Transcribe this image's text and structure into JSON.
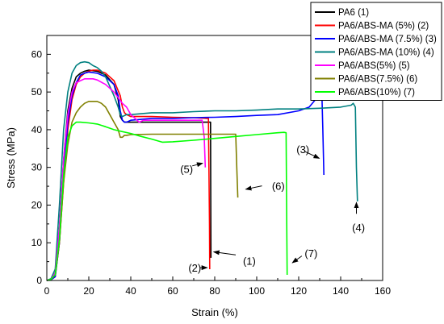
{
  "chart_data": {
    "type": "line",
    "xlabel": "Strain  (%)",
    "ylabel": "Stress  (MPa)",
    "xlim": [
      0,
      160
    ],
    "ylim": [
      0,
      65
    ],
    "xticks": [
      0,
      20,
      40,
      60,
      80,
      100,
      120,
      140,
      160
    ],
    "yticks": [
      0,
      10,
      20,
      30,
      40,
      50,
      60
    ],
    "grid": false,
    "legend_position": "top-right",
    "series": [
      {
        "name": "PA6 (1)",
        "color": "#000000",
        "x": [
          0,
          2,
          4,
          6,
          8,
          10,
          12,
          14,
          16,
          18,
          20,
          24,
          28,
          32,
          34,
          35,
          36,
          37,
          40,
          50,
          60,
          70,
          76,
          78,
          78.1,
          78.2
        ],
        "y": [
          0,
          0.3,
          1.5,
          14,
          32,
          45,
          51,
          54,
          55,
          55.5,
          55.8,
          55.5,
          54.5,
          52,
          48,
          43.5,
          42.5,
          42,
          42,
          42,
          42,
          42,
          42,
          42,
          20,
          6
        ]
      },
      {
        "name": "PA6/ABS-MA (5%) (2)",
        "color": "#ff0000",
        "x": [
          0,
          2,
          4,
          6,
          8,
          10,
          12,
          14,
          16,
          18,
          20,
          22,
          24,
          28,
          32,
          35,
          36,
          37,
          38,
          40,
          50,
          60,
          70,
          76,
          77,
          77.5,
          77.6
        ],
        "y": [
          0,
          0.2,
          1,
          10,
          26,
          40,
          48,
          52,
          54,
          55,
          55.5,
          55.8,
          55.8,
          55,
          53,
          49,
          46,
          44.5,
          44,
          43.5,
          43.5,
          43.3,
          43.2,
          43,
          43,
          15,
          3
        ]
      },
      {
        "name": "PA6/ABS-MA (7.5%) (3)",
        "color": "#0000ff",
        "x": [
          0,
          2,
          4,
          6,
          8,
          10,
          12,
          14,
          16,
          18,
          20,
          24,
          28,
          32,
          34,
          35,
          36,
          37,
          38,
          40,
          50,
          60,
          70,
          80,
          90,
          100,
          110,
          120,
          125,
          128,
          130,
          131,
          131.5,
          132
        ],
        "y": [
          0,
          0.2,
          1,
          10,
          28,
          42,
          49,
          52.5,
          54.5,
          55,
          55.3,
          55,
          54,
          52,
          49,
          45,
          42.5,
          42,
          42,
          42.5,
          43,
          43,
          43.2,
          43.3,
          43.5,
          43.8,
          44,
          45,
          46,
          48,
          50,
          50.5,
          40,
          28
        ]
      },
      {
        "name": "PA6/ABS-MA (10%) (4)",
        "color": "#008080",
        "x": [
          0,
          2,
          4,
          6,
          8,
          10,
          12,
          14,
          16,
          18,
          20,
          22,
          24,
          26,
          28,
          30,
          32,
          34,
          35,
          36,
          38,
          40,
          50,
          60,
          70,
          80,
          90,
          100,
          110,
          120,
          130,
          140,
          145,
          146,
          147,
          147.5,
          148
        ],
        "y": [
          0,
          0.5,
          3,
          20,
          40,
          50,
          55,
          57,
          57.8,
          58,
          57.8,
          57,
          56.5,
          55.5,
          54,
          51.5,
          49,
          46,
          44,
          43.5,
          44,
          44,
          44.5,
          44.5,
          44.8,
          45,
          45,
          45.2,
          45.5,
          45.5,
          45.7,
          46,
          46.5,
          47,
          46,
          30,
          21
        ]
      },
      {
        "name": "PA6/ABS(5%) (5)",
        "color": "#ff00ff",
        "x": [
          0,
          2,
          4,
          6,
          8,
          10,
          12,
          14,
          16,
          18,
          20,
          22,
          24,
          28,
          32,
          36,
          38,
          40,
          42,
          44,
          46,
          50,
          60,
          70,
          74,
          75,
          75.5
        ],
        "y": [
          0,
          0.3,
          2,
          14,
          32,
          44,
          50,
          52.5,
          53,
          53.5,
          53.5,
          53.5,
          53.2,
          52,
          50,
          47,
          46,
          44,
          43,
          42,
          42.5,
          42.5,
          42.5,
          42.5,
          42.5,
          38,
          30
        ]
      },
      {
        "name": "PA6/ABS(7.5%) (6)",
        "color": "#808000",
        "x": [
          0,
          2,
          4,
          6,
          8,
          10,
          12,
          14,
          16,
          18,
          20,
          22,
          24,
          26,
          28,
          30,
          32,
          34,
          35,
          36,
          37,
          38,
          40,
          50,
          60,
          70,
          80,
          89,
          90,
          90.5,
          91
        ],
        "y": [
          0,
          0.3,
          1.5,
          10,
          26,
          36,
          42,
          44.5,
          46,
          47,
          47.5,
          47.5,
          47.5,
          47,
          46,
          44,
          42,
          40,
          38,
          38,
          38.5,
          38.5,
          38.7,
          38.8,
          38.8,
          38.8,
          38.8,
          38.8,
          38.8,
          30,
          22
        ]
      },
      {
        "name": "PA6/ABS(10%) (7)",
        "color": "#00ff00",
        "x": [
          0,
          2,
          4,
          6,
          8,
          10,
          12,
          14,
          16,
          20,
          24,
          28,
          32,
          36,
          40,
          45,
          50,
          55,
          60,
          70,
          80,
          90,
          100,
          110,
          113,
          114,
          114.3,
          114.5
        ],
        "y": [
          0,
          0.3,
          1.5,
          11,
          28,
          38,
          41,
          42,
          42,
          41.8,
          41.5,
          40.8,
          40,
          39.5,
          39,
          38.2,
          37.5,
          36.7,
          36.8,
          37.2,
          37.7,
          38.2,
          38.7,
          39.2,
          39.3,
          39.2,
          15,
          1.5
        ]
      }
    ],
    "annotations": [
      {
        "text": "(1)",
        "x": 96.5,
        "y": 5.2,
        "arrow_from": [
          90,
          6.8
        ],
        "arrow_to": [
          79.5,
          7.6
        ]
      },
      {
        "text": "(2)",
        "x": 70.5,
        "y": 3.4,
        "arrow_from": [
          73,
          3.4
        ],
        "arrow_to": [
          76.4,
          3.4
        ]
      },
      {
        "text": "(3)",
        "x": 122,
        "y": 34.9,
        "arrow_from": [
          123,
          34.2
        ],
        "arrow_to": [
          129.8,
          32.4
        ]
      },
      {
        "text": "(4)",
        "x": 148.5,
        "y": 14.1,
        "arrow_from": [
          147.5,
          17.7
        ],
        "arrow_to": [
          147.5,
          20.7
        ]
      },
      {
        "text": "(5)",
        "x": 66.6,
        "y": 29.6,
        "arrow_from": [
          69.3,
          30.4
        ],
        "arrow_to": [
          74.2,
          31.1
        ]
      },
      {
        "text": "(6)",
        "x": 110.3,
        "y": 25.1,
        "arrow_from": [
          102.5,
          25.1
        ],
        "arrow_to": [
          94.8,
          24.2
        ]
      },
      {
        "text": "(7)",
        "x": 125.9,
        "y": 7.3,
        "arrow_from": [
          121.5,
          6.5
        ],
        "arrow_to": [
          117,
          4.7
        ]
      }
    ]
  }
}
